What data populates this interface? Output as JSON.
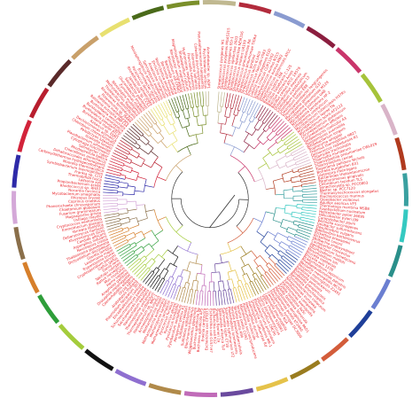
{
  "colors": {
    "label": "#e8232a",
    "stem": "#333333",
    "background": "#ffffff"
  },
  "ring_segments": [
    {
      "color": "#b22b3c"
    },
    {
      "color": "#8a9bd0"
    },
    {
      "color": "#8b1e3f"
    },
    {
      "color": "#c9366b"
    },
    {
      "color": "#a6c33a"
    },
    {
      "color": "#d9b4c8"
    },
    {
      "color": "#b03a1e"
    },
    {
      "color": "#3aa0a0"
    },
    {
      "color": "#35c9c1"
    },
    {
      "color": "#2a8f8a"
    },
    {
      "color": "#6b7fd1"
    },
    {
      "color": "#1f3f99"
    },
    {
      "color": "#d35c3a"
    },
    {
      "color": "#9a7c1f"
    },
    {
      "color": "#e5c24a"
    },
    {
      "color": "#6a4a9e"
    },
    {
      "color": "#c06bb8"
    },
    {
      "color": "#b08a4a"
    },
    {
      "color": "#8f6fd0"
    },
    {
      "color": "#111111"
    },
    {
      "color": "#a4cc3c"
    },
    {
      "color": "#2e9e3a"
    },
    {
      "color": "#d67f2b"
    },
    {
      "color": "#8a6f4a"
    },
    {
      "color": "#d4a8d8"
    },
    {
      "color": "#2e2aa8"
    },
    {
      "color": "#d2233a"
    },
    {
      "color": "#b81e2e"
    },
    {
      "color": "#5a2a2a"
    },
    {
      "color": "#c9a06a"
    },
    {
      "color": "#e8e070"
    },
    {
      "color": "#4a6a1a"
    },
    {
      "color": "#7a8f2a"
    },
    {
      "color": "#c0b890"
    }
  ],
  "taxa": [
    "Streptococcus pyogenes M1",
    "Streptococcus pyogenes MGAS315",
    "Streptococcus pyogenes SSI-1",
    "Streptococcus agalactiae 2603",
    "Streptococcus agalactiae NEM316",
    "Streptococcus mutans UA159",
    "Streptococcus pneumoniae R6",
    "Streptococcus pneumoniae TIGR4",
    "Streptococcus gordonii",
    "Lactococcus lactis IL1403",
    "Enterococcus faecalis V583",
    "Listeria monocytogenes EGD",
    "Listeria innocua CLIP11262",
    "Staphylococcus aureus N315",
    "Staphylococcus aureus MW2",
    "Staphylococcus epidermidis ATCC",
    "Bacillus subtilis 168",
    "Bacillus halodurans C-125",
    "Bacillus anthracis Ames",
    "Bacillus cereus ATCC 14579",
    "Oceanobacillus iheyensis",
    "Clostridium acetobutylicum",
    "Clostridium perfringens 13",
    "Clostridium tetani E88",
    "Thermoanaerobacter tengcongensis",
    "Mycoplasma genitalium G37",
    "Mycoplasma pneumoniae M129",
    "Mycoplasma pulmonis UAB",
    "Mycoplasma penetrans HF-2",
    "Ureaplasma urealyticum",
    "Mycobacterium tuberculosis H37Rv",
    "Mycobacterium leprae TN",
    "Mycobacterium bovis AF2122",
    "Corynebacterium glutamicum",
    "Corynebacterium efficiens",
    "Streptomyces coelicolor A3",
    "Streptomyces avermitilis",
    "Bifidobacterium longum",
    "Tropheryma whipplei",
    "Thermus thermophilus HB27",
    "Deinococcus radiodurans R1",
    "Chlamydia trachomatis",
    "Chlamydia muridarum",
    "Chlamydophila pneumoniae CWL029",
    "Chlamydophila caviae",
    "Treponema pallidum Nichols",
    "Borrelia burgdorferi B31",
    "Leptospira interrogans",
    "Bacteroides thetaiotaomicron",
    "Porphyromonas gingivalis",
    "Chlorobium tepidum TLS",
    "Synechocystis sp. PCC6803",
    "Nostoc sp. PCC7120",
    "Thermosynechococcus elongatus",
    "Prochlorococcus marinus",
    "Gloeobacter violaceus",
    "Aquifex aeolicus VF5",
    "Thermotoga maritima MSB8",
    "Fusobacterium nucleatum",
    "Helicobacter pylori 26695",
    "Helicobacter pylori J99",
    "Campylobacter jejuni",
    "Wolinella succinogenes",
    "Geobacter sulfurreducens",
    "Desulfovibrio vulgaris",
    "Bdellovibrio bacteriovorus",
    "Rickettsia prowazekii",
    "Rickettsia conorii",
    "Wolbachia endosymbiont",
    "Caulobacter crescentus",
    "Agrobacterium tumefaciens",
    "Sinorhizobium meliloti",
    "Mesorhizobium loti",
    "Brucella melitensis",
    "Brucella suis 1330",
    "Bradyrhizobium japonicum",
    "Rhodopseudomonas palustris",
    "Neisseria meningitidis MC58",
    "Neisseria meningitidis Z2491",
    "Ralstonia solanacearum",
    "Bordetella pertussis",
    "Bordetella parapertussis",
    "Bordetella bronchiseptica",
    "Chromobacterium violaceum",
    "Nitrosomonas europaea",
    "Xanthomonas campestris",
    "Xanthomonas axonopodis",
    "Xylella fastidiosa 9a5c",
    "Xylella fastidiosa Temecula",
    "Pseudomonas aeruginosa PAO1",
    "Pseudomonas putida KT2440",
    "Pseudomonas syringae DC3000",
    "Coxiella burnetii RSA",
    "Legionella pneumophila",
    "Vibrio cholerae N16961",
    "Vibrio parahaemolyticus",
    "Vibrio vulnificus CMCP6",
    "Photobacterium profundum",
    "Shewanella oneidensis MR-1",
    "Haemophilus influenzae Rd",
    "Haemophilus ducreyi",
    "Pasteurella multocida",
    "Mannheimia succiniciproducens",
    "Yersinia pestis CO92",
    "Yersinia pestis KIM",
    "Yersinia pseudotuberculosis",
    "Photorhabdus luminescens",
    "Salmonella typhimurium LT2",
    "Salmonella typhi CT18",
    "Salmonella enterica Ty2",
    "Shigella flexneri 2a",
    "Escherichia coli K12",
    "Escherichia coli O157:H7",
    "Escherichia coli CFT073",
    "Erwinia carotovora",
    "Buchnera aphidicola APS",
    "Buchnera aphidicola Sg",
    "Wigglesworthia glossinidia",
    "Blochmannia floridanus",
    "Sulfolobus solfataricus",
    "Sulfolobus tokodaii",
    "Aeropyrum pernix K1",
    "Pyrobaculum aerophilum",
    "Pyrococcus horikoshii",
    "Pyrococcus abyssi",
    "Pyrococcus furiosus",
    "Methanococcus jannaschii",
    "Methanopyrus kandleri",
    "Methanosarcina acetivorans",
    "Methanosarcina mazei",
    "Archaeoglobus fulgidus",
    "Halobacterium sp. NRC-1",
    "Thermoplasma acidophilum",
    "Thermoplasma volcanium",
    "Nanoarchaeum equitans",
    "Saccharomyces cerevisiae",
    "Schizosaccharomyces pombe",
    "Encephalitozoon cuniculi",
    "Plasmodium falciparum 3D7",
    "Arabidopsis thaliana",
    "Oryza sativa",
    "Caenorhabditis elegans",
    "Drosophila melanogaster",
    "Anopheles gambiae",
    "Homo sapiens",
    "Mus musculus",
    "Rattus norvegicus",
    "Takifugu rubripes",
    "Danio rerio",
    "Gallus gallus",
    "Cryptosporidium parvum",
    "Trypanosoma brucei",
    "Leishmania major",
    "Giardia lamblia",
    "Dictyostelium discoideum",
    "Thalassiosira pseudonana",
    "Neurospora crassa",
    "Aspergillus nidulans",
    "Candida albicans",
    "Kluyveromyces lactis",
    "Debaryomyces hansenii",
    "Yarrowia lipolytica",
    "Eremothecium gossypii",
    "Cryptococcus neoformans",
    "Ustilago maydis",
    "Magnaporthe grisea",
    "Fusarium graminearum",
    "Chaetomium globosum",
    "Phanerochaete chrysosporium",
    "Coprinus cinereus",
    "Rhizopus oryzae",
    "Mycobacterium smegmatis",
    "Nocardia farcinica",
    "Rhodococcus sp. RHA1",
    "Propionibacterium acnes",
    "Leifsonia xyli",
    "Thermobifida fusca",
    "Frankia sp. CcI3",
    "Symbiobacterium thermophilum",
    "Moorella thermoacetica",
    "Carboxydothermus hydrogenoformans",
    "Dehalococcoides ethenogenes",
    "Chloroflexus aurantiacus",
    "Rhodopirellula baltica",
    "Salinibacter ruber",
    "Cytophaga hutchinsonii",
    "Flavobacterium johnsoniae",
    "Gramella forsetii",
    "Pelodictyon luteolum",
    "Chlorobium chlorochromatii",
    "Dechloromonas aromatica",
    "Azoarcus sp. EbN1",
    "Burkholderia mallei ATCC",
    "Burkholderia pseudomallei",
    "Burkholderia cenocepacia",
    "Burkholderia xenovorans",
    "Ralstonia eutropha JMP134",
    "Ralstonia metallidurans",
    "Polaromonas sp. JS666",
    "Rhodoferax ferrireducens",
    "Thiobacillus denitrificans",
    "Methylobacillus flagellatus",
    "Nitrosospira multiformis",
    "Zymomonas mobilis",
    "Gluconobacter oxydans",
    "Silicibacter pomeroyi",
    "Jannaschia sp. CCS1",
    "Rhodobacter sphaeroides",
    "Paracoccus denitrificans",
    "Erythrobacter litoralis",
    "Novosphingobium aromaticivorans",
    "Sphingopyxis alaskensis",
    "Anaplasma marginale",
    "Ehrlichia ruminantium",
    "Neorickettsia sennetsu",
    "Bartonella henselae",
    "Bartonella quintana",
    "Rhizobium etli CFN42",
    "Nitrobacter winogradskyi",
    "Magnetospirillum magneticum",
    "Rhodospirillum rubrum",
    "Hyphomonas neptunium",
    "Francisella tularensis",
    "Idiomarina loihiensis",
    "Colwellia psychrerythraea",
    "Pseudoalteromonas haloplanktis",
    "Psychrobacter arcticus",
    "Acinetobacter sp. ADP1"
  ]
}
